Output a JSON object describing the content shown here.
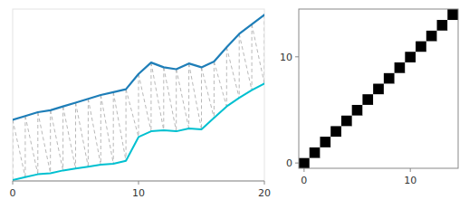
{
  "chart_data": [
    {
      "type": "line",
      "x": [
        0,
        1,
        2,
        3,
        4,
        5,
        6,
        7,
        8,
        9,
        10,
        11,
        12,
        13,
        14,
        15,
        16,
        17,
        18,
        19,
        20
      ],
      "series": [
        {
          "color": "#1e7eb8",
          "values": [
            3.2,
            3.4,
            3.6,
            3.7,
            3.9,
            4.1,
            4.3,
            4.5,
            4.65,
            4.8,
            5.6,
            6.2,
            5.95,
            5.85,
            6.15,
            5.95,
            6.25,
            7.0,
            7.7,
            8.2,
            8.7
          ]
        },
        {
          "color": "#00c0d0",
          "values": [
            0.05,
            0.2,
            0.35,
            0.4,
            0.55,
            0.65,
            0.75,
            0.85,
            0.9,
            1.05,
            2.3,
            2.6,
            2.65,
            2.6,
            2.75,
            2.7,
            3.3,
            3.9,
            4.35,
            4.75,
            5.1
          ]
        }
      ],
      "pairs": {
        "color": "#b0b0b0",
        "line_style": "dashed",
        "values": [
          [
            0,
            0
          ],
          [
            0,
            1
          ],
          [
            1,
            1
          ],
          [
            1,
            2
          ],
          [
            2,
            2
          ],
          [
            2,
            3
          ],
          [
            3,
            3
          ],
          [
            3,
            4
          ],
          [
            4,
            4
          ],
          [
            4,
            5
          ],
          [
            5,
            5
          ],
          [
            5,
            6
          ],
          [
            6,
            6
          ],
          [
            6,
            7
          ],
          [
            7,
            7
          ],
          [
            7,
            8
          ],
          [
            8,
            8
          ],
          [
            8,
            9
          ],
          [
            9,
            9
          ],
          [
            9,
            10
          ],
          [
            10,
            10
          ],
          [
            10,
            11
          ],
          [
            11,
            11
          ],
          [
            11,
            12
          ],
          [
            12,
            12
          ],
          [
            12,
            13
          ],
          [
            13,
            13
          ],
          [
            13,
            14
          ],
          [
            14,
            14
          ],
          [
            14,
            15
          ],
          [
            15,
            15
          ],
          [
            15,
            16
          ],
          [
            16,
            16
          ],
          [
            16,
            17
          ],
          [
            17,
            17
          ],
          [
            17,
            18
          ],
          [
            18,
            18
          ],
          [
            18,
            19
          ],
          [
            19,
            19
          ],
          [
            19,
            20
          ],
          [
            20,
            20
          ]
        ]
      },
      "xlim": [
        0,
        20
      ],
      "ylim": [
        0,
        9
      ],
      "xticks": [
        0,
        10,
        20
      ],
      "tick_labels": "x"
    },
    {
      "type": "heatmap",
      "cells": [
        [
          1,
          0,
          0,
          0,
          0,
          0,
          0,
          0,
          0,
          0,
          0,
          0,
          0,
          0,
          0
        ],
        [
          0,
          1,
          0,
          0,
          0,
          0,
          0,
          0,
          0,
          0,
          0,
          0,
          0,
          0,
          0
        ],
        [
          0,
          0,
          1,
          0,
          0,
          0,
          0,
          0,
          0,
          0,
          0,
          0,
          0,
          0,
          0
        ],
        [
          0,
          0,
          0,
          1,
          0,
          0,
          0,
          0,
          0,
          0,
          0,
          0,
          0,
          0,
          0
        ],
        [
          0,
          0,
          0,
          0,
          1,
          0,
          0,
          0,
          0,
          0,
          0,
          0,
          0,
          0,
          0
        ],
        [
          0,
          0,
          0,
          0,
          0,
          1,
          0,
          0,
          0,
          0,
          0,
          0,
          0,
          0,
          0
        ],
        [
          0,
          0,
          0,
          0,
          0,
          0,
          1,
          0,
          0,
          0,
          0,
          0,
          0,
          0,
          0
        ],
        [
          0,
          0,
          0,
          0,
          0,
          0,
          0,
          1,
          0,
          0,
          0,
          0,
          0,
          0,
          0
        ],
        [
          0,
          0,
          0,
          0,
          0,
          0,
          0,
          0,
          1,
          0,
          0,
          0,
          0,
          0,
          0
        ],
        [
          0,
          0,
          0,
          0,
          0,
          0,
          0,
          0,
          0,
          1,
          0,
          0,
          0,
          0,
          0
        ],
        [
          0,
          0,
          0,
          0,
          0,
          0,
          0,
          0,
          0,
          0,
          1,
          0,
          0,
          0,
          0
        ],
        [
          0,
          0,
          0,
          0,
          0,
          0,
          0,
          0,
          0,
          0,
          0,
          1,
          0,
          0,
          0
        ],
        [
          0,
          0,
          0,
          0,
          0,
          0,
          0,
          0,
          0,
          0,
          0,
          0,
          1,
          0,
          0
        ],
        [
          0,
          0,
          0,
          0,
          0,
          0,
          0,
          0,
          0,
          0,
          0,
          0,
          0,
          1,
          0
        ],
        [
          0,
          0,
          0,
          0,
          0,
          0,
          0,
          0,
          0,
          0,
          0,
          0,
          0,
          0,
          1
        ]
      ],
      "vlim": [
        0,
        1
      ],
      "xlim": [
        -0.5,
        14.5
      ],
      "ylim": [
        -0.5,
        14.5
      ],
      "xticks": [
        0,
        10
      ],
      "yticks": [
        0,
        10
      ]
    }
  ]
}
